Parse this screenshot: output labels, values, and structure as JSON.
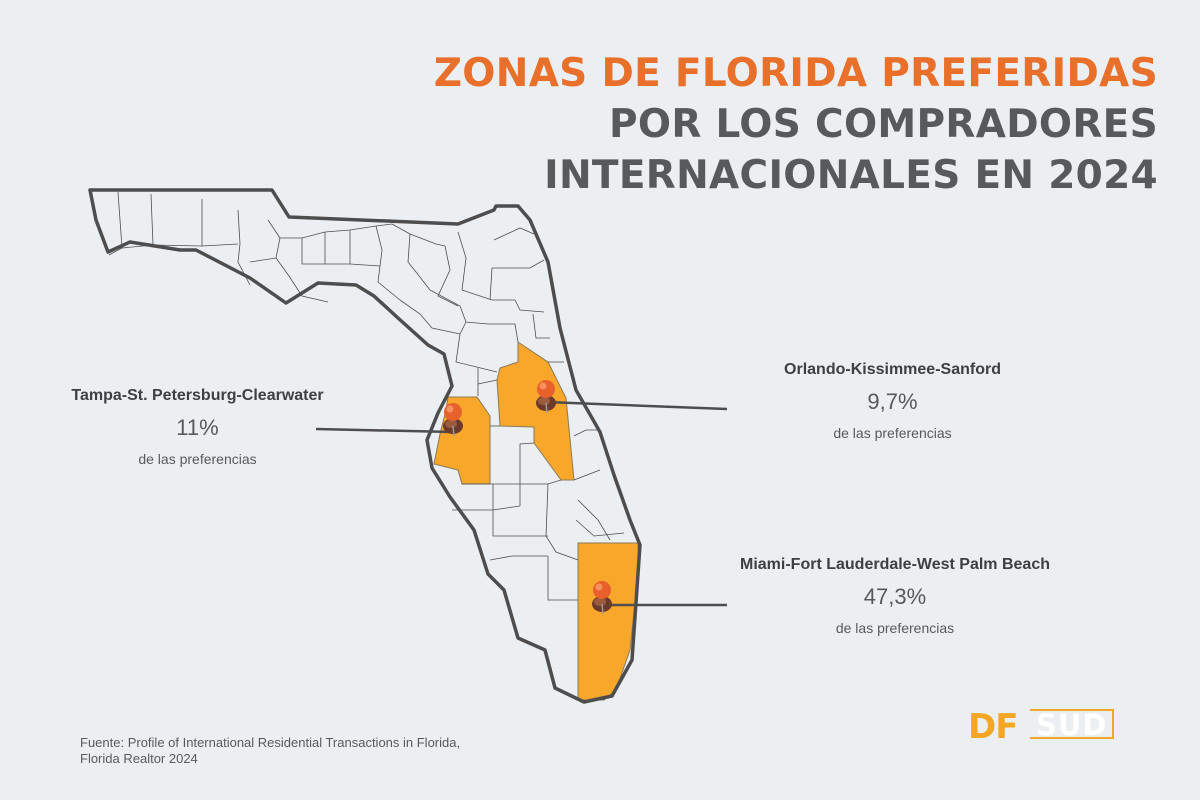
{
  "title": {
    "line1": "ZONAS DE FLORIDA PREFERIDAS",
    "line2": "POR LOS COMPRADORES",
    "line3": "INTERNACIONALES EN 2024"
  },
  "colors": {
    "accent_orange": "#e8702a",
    "highlight": "#f9a72b",
    "text_dark": "#58595b",
    "border": "#4a4a4a",
    "background": "#eceff1"
  },
  "regions": {
    "tampa": {
      "name": "Tampa-St. Petersburg-Clearwater",
      "percent": "11%",
      "caption": "de las preferencias"
    },
    "orlando": {
      "name": "Orlando-Kissimmee-Sanford",
      "percent": "9,7%",
      "caption": "de las preferencias"
    },
    "miami": {
      "name": "Miami-Fort Lauderdale-West Palm Beach",
      "percent": "47,3%",
      "caption": "de las preferencias"
    }
  },
  "source": {
    "line1": "Fuente: Profile of International Residential Transactions in Florida,",
    "line2": "Florida Realtor 2024"
  },
  "logo": {
    "df": "DF",
    "sud": "SUD",
    "tagline": ""
  },
  "icons": {
    "pin": "pushpin-icon"
  }
}
